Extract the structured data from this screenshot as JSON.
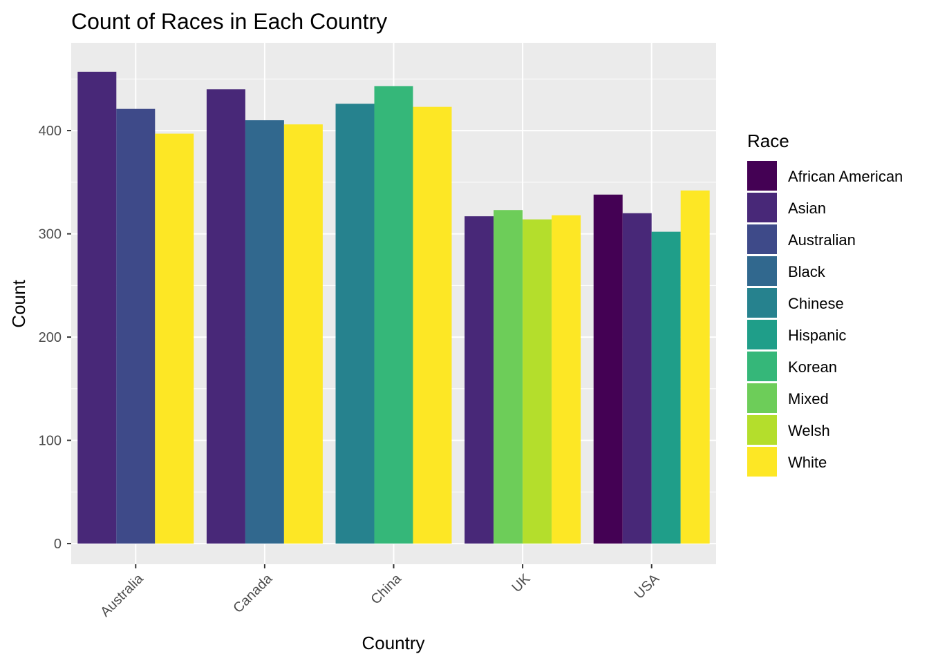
{
  "chart_data": {
    "type": "bar",
    "title": "Count of Races in Each Country",
    "xlabel": "Country",
    "ylabel": "Count",
    "ylim": [
      -20,
      485
    ],
    "y_ticks": [
      0,
      100,
      200,
      300,
      400
    ],
    "grid": true,
    "legend": {
      "title": "Race",
      "placement": "right",
      "entries": [
        {
          "name": "African American",
          "color": "#440154"
        },
        {
          "name": "Asian",
          "color": "#482878"
        },
        {
          "name": "Australian",
          "color": "#3E4A89"
        },
        {
          "name": "Black",
          "color": "#31688E"
        },
        {
          "name": "Chinese",
          "color": "#26828E"
        },
        {
          "name": "Hispanic",
          "color": "#1F9E89"
        },
        {
          "name": "Korean",
          "color": "#35B779"
        },
        {
          "name": "Mixed",
          "color": "#6DCD59"
        },
        {
          "name": "Welsh",
          "color": "#B4DE2C"
        },
        {
          "name": "White",
          "color": "#FDE725"
        }
      ]
    },
    "categories": [
      "Australia",
      "Canada",
      "China",
      "UK",
      "USA"
    ],
    "groups": [
      {
        "country": "Australia",
        "bars": [
          {
            "race": "Asian",
            "value": 457
          },
          {
            "race": "Australian",
            "value": 421
          },
          {
            "race": "White",
            "value": 397
          }
        ]
      },
      {
        "country": "Canada",
        "bars": [
          {
            "race": "Asian",
            "value": 440
          },
          {
            "race": "Black",
            "value": 410
          },
          {
            "race": "White",
            "value": 406
          }
        ]
      },
      {
        "country": "China",
        "bars": [
          {
            "race": "Chinese",
            "value": 426
          },
          {
            "race": "Korean",
            "value": 443
          },
          {
            "race": "White",
            "value": 423
          }
        ]
      },
      {
        "country": "UK",
        "bars": [
          {
            "race": "Asian",
            "value": 317
          },
          {
            "race": "Mixed",
            "value": 323
          },
          {
            "race": "Welsh",
            "value": 314
          },
          {
            "race": "White",
            "value": 318
          }
        ]
      },
      {
        "country": "USA",
        "bars": [
          {
            "race": "African American",
            "value": 338
          },
          {
            "race": "Asian",
            "value": 320
          },
          {
            "race": "Hispanic",
            "value": 302
          },
          {
            "race": "White",
            "value": 342
          }
        ]
      }
    ]
  }
}
